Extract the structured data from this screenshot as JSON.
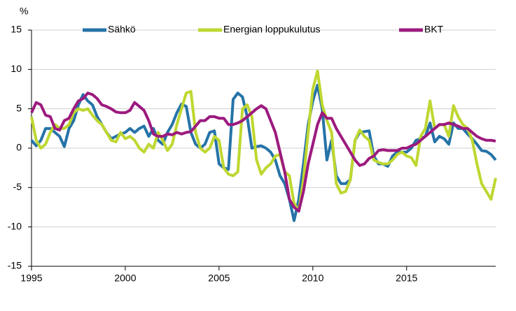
{
  "chart_data": {
    "type": "line",
    "y_unit": "%",
    "x": [
      1995,
      1995.25,
      1995.5,
      1995.75,
      1996,
      1996.25,
      1996.5,
      1996.75,
      1997,
      1997.25,
      1997.5,
      1997.75,
      1998,
      1998.25,
      1998.5,
      1998.75,
      1999,
      1999.25,
      1999.5,
      1999.75,
      2000,
      2000.25,
      2000.5,
      2000.75,
      2001,
      2001.25,
      2001.5,
      2001.75,
      2002,
      2002.25,
      2002.5,
      2002.75,
      2003,
      2003.25,
      2003.5,
      2003.75,
      2004,
      2004.25,
      2004.5,
      2004.75,
      2005,
      2005.25,
      2005.5,
      2005.75,
      2006,
      2006.25,
      2006.5,
      2006.75,
      2007,
      2007.25,
      2007.5,
      2007.75,
      2008,
      2008.25,
      2008.5,
      2008.75,
      2009,
      2009.25,
      2009.5,
      2009.75,
      2010,
      2010.25,
      2010.5,
      2010.75,
      2011,
      2011.25,
      2011.5,
      2011.75,
      2012,
      2012.25,
      2012.5,
      2012.75,
      2013,
      2013.25,
      2013.5,
      2013.75,
      2014,
      2014.25,
      2014.5,
      2014.75,
      2015,
      2015.25,
      2015.5,
      2015.75,
      2016,
      2016.25,
      2016.5,
      2016.75,
      2017,
      2017.25,
      2017.5,
      2017.75,
      2018,
      2018.25,
      2018.5,
      2018.75,
      2019,
      2019.25,
      2019.5,
      2019.75
    ],
    "series": [
      {
        "name": "Sähkö",
        "color": "#2573a8",
        "values": [
          1,
          0.3,
          1,
          2.5,
          2.5,
          2,
          1.5,
          0.2,
          2.5,
          3.5,
          5.5,
          6.8,
          6,
          5.5,
          4,
          3,
          2,
          1.2,
          1.5,
          1.8,
          2,
          2.5,
          2,
          2.5,
          2.8,
          1.5,
          2.5,
          1,
          0.5,
          2,
          3,
          4.5,
          5.6,
          5.3,
          2,
          0.5,
          0,
          0.5,
          2,
          2.2,
          -2,
          -2.5,
          -2.7,
          6.2,
          7,
          6.5,
          4,
          0,
          0.2,
          0.3,
          0,
          -0.5,
          -1.5,
          -3.5,
          -4.5,
          -6.5,
          -9.2,
          -6.5,
          -2,
          3,
          6,
          8,
          5,
          -1.5,
          1,
          -3.5,
          -4.5,
          -4.5,
          -4,
          1,
          2,
          2.1,
          2.2,
          -1,
          -2,
          -2,
          -2.3,
          -1,
          -0.5,
          -0.5,
          -0.5,
          0,
          1,
          1.2,
          1.5,
          3.2,
          0.8,
          1.5,
          1.2,
          0.5,
          3.2,
          2.5,
          2.5,
          1.8,
          1.2,
          0.5,
          -0.3,
          -0.4,
          -0.8,
          -1.5
        ]
      },
      {
        "name": "Energian loppukulutus",
        "color": "#bfd730",
        "values": [
          4,
          1,
          0,
          0.5,
          2,
          3,
          2.5,
          2.5,
          3,
          4.5,
          5,
          4.8,
          5,
          4.2,
          3.5,
          3,
          2,
          1,
          0.8,
          2,
          1.2,
          1.5,
          1,
          0,
          -0.5,
          0.5,
          0,
          2,
          1,
          -0.3,
          0.5,
          3,
          5,
          7,
          7.2,
          2,
          0,
          -0.5,
          0,
          1.5,
          1,
          -2.5,
          -3.3,
          -3.5,
          -3,
          5,
          5.5,
          4,
          -1.5,
          -3.3,
          -2.5,
          -2,
          -1,
          -0.8,
          -3,
          -3.5,
          -7,
          -8,
          -4,
          2,
          7.5,
          9.8,
          5.5,
          3.5,
          2,
          -4.5,
          -5.7,
          -5.5,
          -4,
          1,
          2.3,
          1.5,
          1,
          -1.5,
          -1.8,
          -2,
          -2,
          -1.5,
          -0.8,
          -0.5,
          -1,
          -1.2,
          -2.2,
          1.5,
          2.5,
          6,
          2.5,
          3,
          3,
          1.5,
          5.4,
          4,
          3,
          2.5,
          1,
          -2,
          -4.5,
          -5.5,
          -6.5,
          -3.8
        ]
      },
      {
        "name": "BKT",
        "color": "#9c1a7e",
        "values": [
          4.5,
          5.8,
          5.5,
          4.2,
          4,
          2.5,
          2.3,
          3.5,
          3.8,
          5,
          6,
          6.3,
          7,
          6.8,
          6.3,
          5.5,
          5.3,
          5,
          4.6,
          4.5,
          4.5,
          4.8,
          5.8,
          5.3,
          4.8,
          3.5,
          1.8,
          1.5,
          1.5,
          1.8,
          1.7,
          2,
          1.8,
          2,
          2.1,
          2.8,
          3.5,
          3.5,
          4,
          4,
          3.8,
          3.8,
          3,
          3,
          3.2,
          3.5,
          4,
          4.5,
          5,
          5.4,
          5,
          3.5,
          2,
          -0.5,
          -3,
          -6.5,
          -7.5,
          -8,
          -5.5,
          -2,
          0.5,
          3,
          4.5,
          3.8,
          3.8,
          2.5,
          1.5,
          0.5,
          -0.5,
          -1.5,
          -2.2,
          -2,
          -1.3,
          -1,
          -0.3,
          -0.2,
          -0.3,
          -0.3,
          -0.3,
          0,
          0,
          0.3,
          0.5,
          1,
          1.5,
          2,
          2.5,
          3,
          3,
          3.2,
          3,
          2.8,
          2.5,
          2.5,
          2,
          1.5,
          1.2,
          1,
          1,
          0.9
        ]
      }
    ],
    "xlim": [
      1995,
      2019.75
    ],
    "xticks": [
      1995,
      2000,
      2005,
      2010,
      2015
    ],
    "ylim": [
      -15,
      15
    ],
    "yticks": [
      -15,
      -10,
      -5,
      0,
      5,
      10,
      15
    ],
    "grid": true,
    "legend": "top"
  }
}
